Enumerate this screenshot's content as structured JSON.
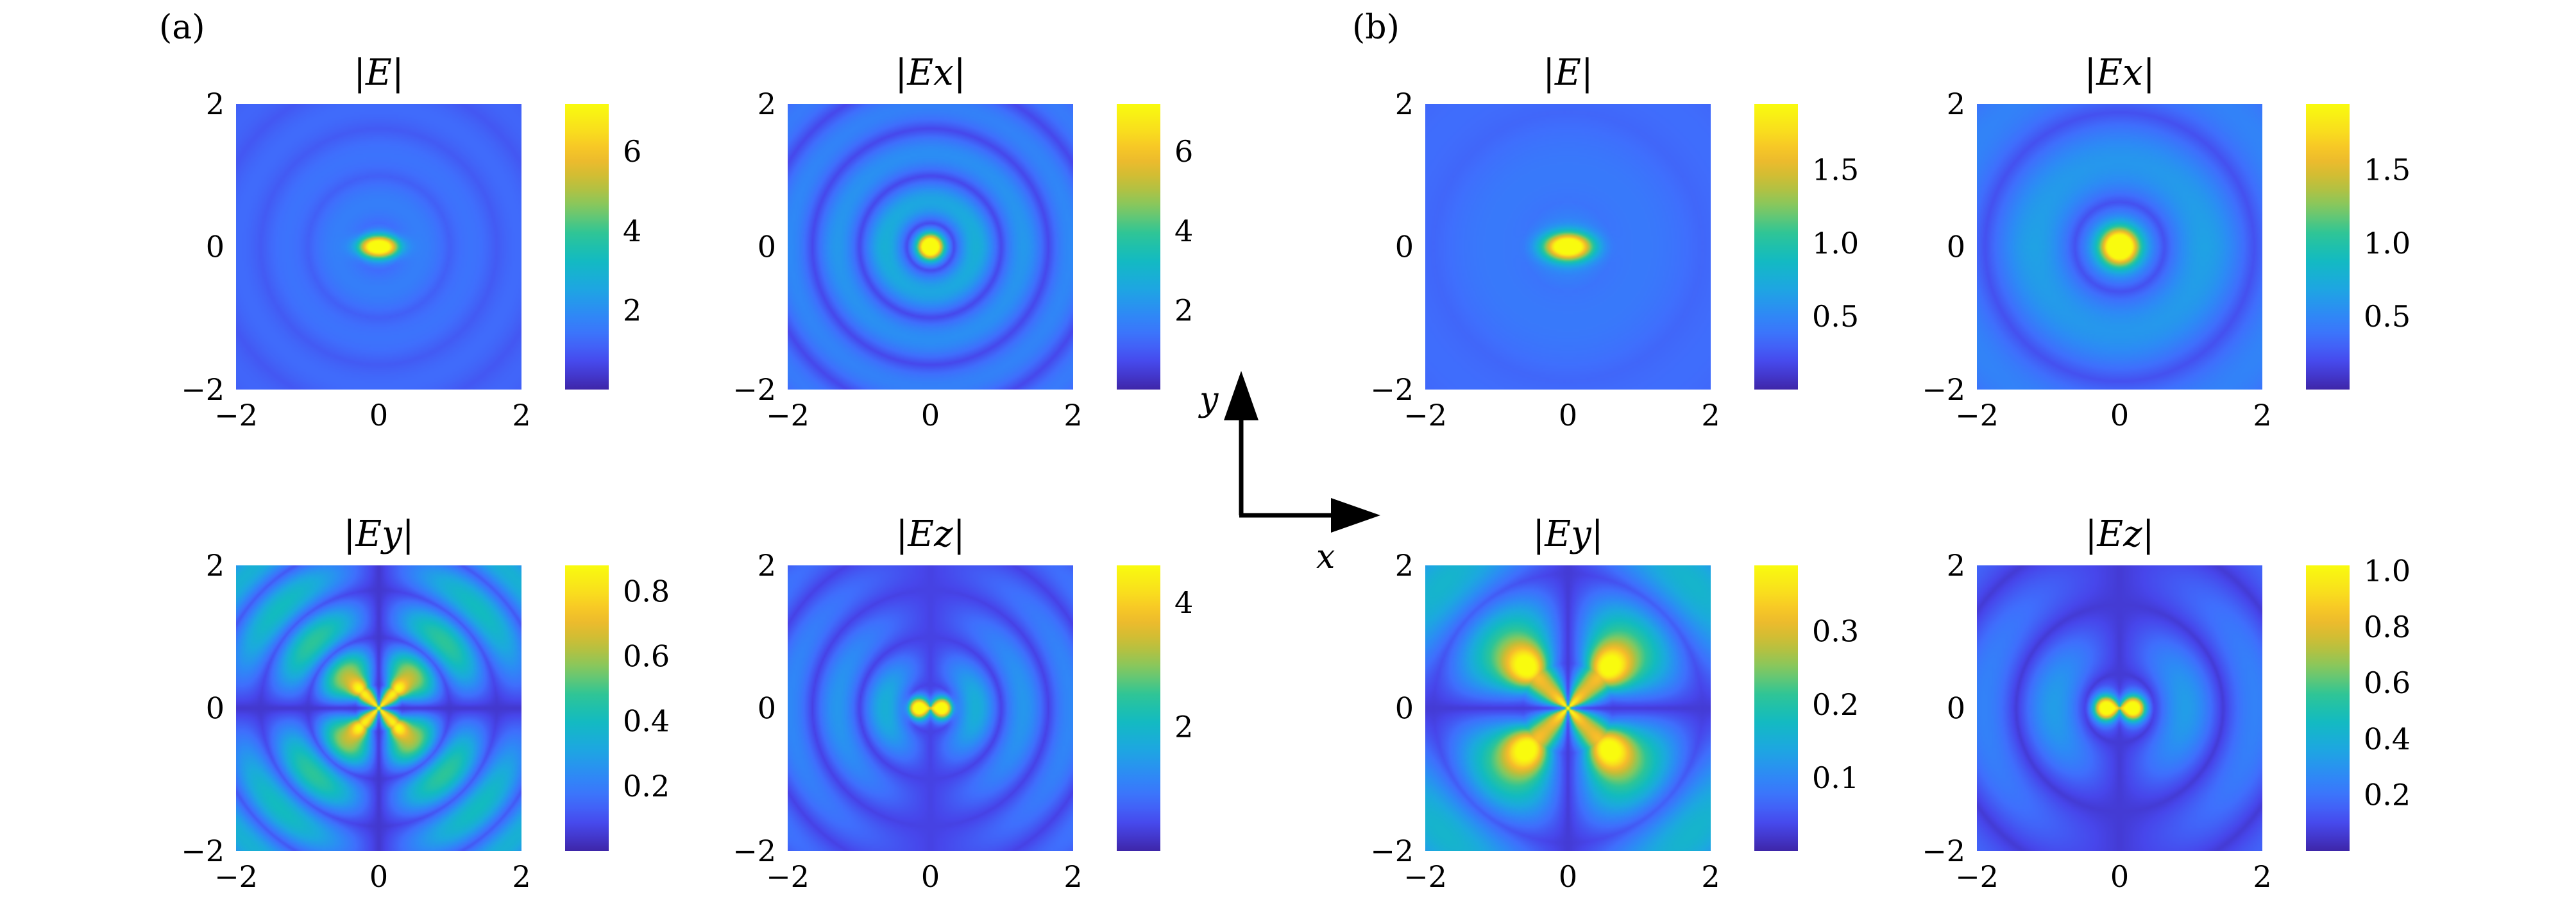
{
  "figure": {
    "group_labels": [
      "(a)",
      "(b)"
    ],
    "axis_indicator": {
      "x_label": "x",
      "y_label": "y"
    }
  },
  "colormap": {
    "name": "parula",
    "stops": [
      "#3e26a8",
      "#4746eb",
      "#3f6ffd",
      "#2c8cf5",
      "#1ca9df",
      "#12bbc0",
      "#2cc598",
      "#7fc962",
      "#c6bd36",
      "#f6bb2b",
      "#f9e01d",
      "#f9fb0e"
    ]
  },
  "chart_data": [
    {
      "type": "heatmap",
      "group": "(a)",
      "title": "|E|",
      "xlim": [
        -2,
        2
      ],
      "ylim": [
        -2,
        2
      ],
      "x_ticks": [
        "−2",
        "0",
        "2"
      ],
      "y_ticks": [
        "−2",
        "0",
        "2"
      ],
      "colorbar": {
        "range": [
          0,
          7.2
        ],
        "ticks": [
          2,
          4,
          6
        ],
        "tick_labels": [
          "2",
          "4",
          "6"
        ]
      },
      "field": {
        "component": "total",
        "ring_wavenumber": 9.5,
        "ring_contrast": 0.55,
        "base_level": 0.22,
        "peak": 7.1,
        "core_width": 0.16,
        "core_elongation_x": 1.7
      }
    },
    {
      "type": "heatmap",
      "group": "(a)",
      "title": "|Ex|",
      "xlim": [
        -2,
        2
      ],
      "ylim": [
        -2,
        2
      ],
      "x_ticks": [
        "−2",
        "0",
        "2"
      ],
      "y_ticks": [
        "−2",
        "0",
        "2"
      ],
      "colorbar": {
        "range": [
          0,
          7.2
        ],
        "ticks": [
          2,
          4,
          6
        ],
        "tick_labels": [
          "2",
          "4",
          "6"
        ]
      },
      "field": {
        "component": "x",
        "ring_wavenumber": 9.5,
        "ring_contrast": 0.9,
        "base_level": 0.18,
        "peak": 7.1,
        "core_width": 0.15,
        "core_elongation_x": 1.0
      }
    },
    {
      "type": "heatmap",
      "group": "(a)",
      "title": "|Ey|",
      "xlim": [
        -2,
        2
      ],
      "ylim": [
        -2,
        2
      ],
      "x_ticks": [
        "−2",
        "0",
        "2"
      ],
      "y_ticks": [
        "−2",
        "0",
        "2"
      ],
      "colorbar": {
        "range": [
          0,
          0.88
        ],
        "ticks": [
          0.2,
          0.4,
          0.6,
          0.8
        ],
        "tick_labels": [
          "0.2",
          "0.4",
          "0.6",
          "0.8"
        ]
      },
      "field": {
        "component": "y",
        "ring_wavenumber": 9.5,
        "ring_contrast": 0.9,
        "base_level": 0.05,
        "peak": 0.86,
        "core_width": 0.32,
        "core_elongation_x": 1.0
      }
    },
    {
      "type": "heatmap",
      "group": "(a)",
      "title": "|Ez|",
      "xlim": [
        -2,
        2
      ],
      "ylim": [
        -2,
        2
      ],
      "x_ticks": [
        "−2",
        "0",
        "2"
      ],
      "y_ticks": [
        "−2",
        "0",
        "2"
      ],
      "colorbar": {
        "range": [
          0,
          4.6
        ],
        "ticks": [
          2,
          4
        ],
        "tick_labels": [
          "2",
          "4"
        ]
      },
      "field": {
        "component": "z",
        "ring_wavenumber": 9.5,
        "ring_contrast": 0.9,
        "base_level": 0.08,
        "peak": 4.5,
        "core_width": 0.16,
        "core_elongation_x": 1.0
      }
    },
    {
      "type": "heatmap",
      "group": "(b)",
      "title": "|E|",
      "xlim": [
        -2,
        2
      ],
      "ylim": [
        -2,
        2
      ],
      "x_ticks": [
        "−2",
        "0",
        "2"
      ],
      "y_ticks": [
        "−2",
        "0",
        "2"
      ],
      "colorbar": {
        "range": [
          0,
          1.95
        ],
        "ticks": [
          0.5,
          1.0,
          1.5
        ],
        "tick_labels": [
          "0.5",
          "1.0",
          "1.5"
        ]
      },
      "field": {
        "component": "total",
        "ring_wavenumber": 5.0,
        "ring_contrast": 0.35,
        "base_level": 0.25,
        "peak": 1.9,
        "core_width": 0.2,
        "core_elongation_x": 1.6
      }
    },
    {
      "type": "heatmap",
      "group": "(b)",
      "title": "|Ex|",
      "xlim": [
        -2,
        2
      ],
      "ylim": [
        -2,
        2
      ],
      "x_ticks": [
        "−2",
        "0",
        "2"
      ],
      "y_ticks": [
        "−2",
        "0",
        "2"
      ],
      "colorbar": {
        "range": [
          0,
          1.95
        ],
        "ticks": [
          0.5,
          1.0,
          1.5
        ],
        "tick_labels": [
          "0.5",
          "1.0",
          "1.5"
        ]
      },
      "field": {
        "component": "x",
        "ring_wavenumber": 5.0,
        "ring_contrast": 0.6,
        "base_level": 0.22,
        "peak": 1.9,
        "core_width": 0.22,
        "core_elongation_x": 1.0
      }
    },
    {
      "type": "heatmap",
      "group": "(b)",
      "title": "|Ey|",
      "xlim": [
        -2,
        2
      ],
      "ylim": [
        -2,
        2
      ],
      "x_ticks": [
        "−2",
        "0",
        "2"
      ],
      "y_ticks": [
        "−2",
        "0",
        "2"
      ],
      "colorbar": {
        "range": [
          0,
          0.39
        ],
        "ticks": [
          0.1,
          0.2,
          0.3
        ],
        "tick_labels": [
          "0.1",
          "0.2",
          "0.3"
        ]
      },
      "field": {
        "component": "y",
        "ring_wavenumber": 5.0,
        "ring_contrast": 0.7,
        "base_level": 0.06,
        "peak": 0.38,
        "core_width": 0.7,
        "core_elongation_x": 1.0
      }
    },
    {
      "type": "heatmap",
      "group": "(b)",
      "title": "|Ez|",
      "xlim": [
        -2,
        2
      ],
      "ylim": [
        -2,
        2
      ],
      "x_ticks": [
        "−2",
        "0",
        "2"
      ],
      "y_ticks": [
        "−2",
        "0",
        "2"
      ],
      "colorbar": {
        "range": [
          0,
          1.02
        ],
        "ticks": [
          0.2,
          0.4,
          0.6,
          0.8,
          1.0
        ],
        "tick_labels": [
          "0.2",
          "0.4",
          "0.6",
          "0.8",
          "1.0"
        ]
      },
      "field": {
        "component": "z",
        "ring_wavenumber": 6.5,
        "ring_contrast": 0.75,
        "base_level": 0.06,
        "peak": 1.0,
        "core_width": 0.18,
        "core_elongation_x": 1.0
      }
    }
  ]
}
